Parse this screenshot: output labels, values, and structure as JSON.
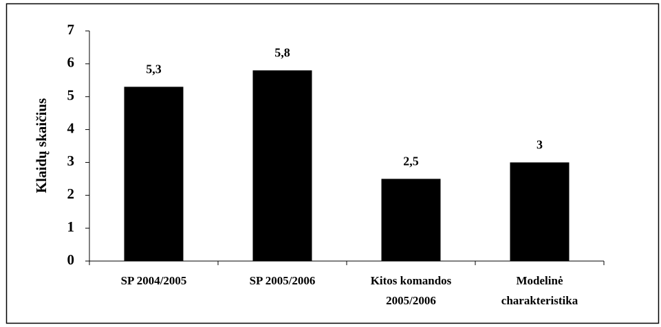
{
  "chart_data": {
    "type": "bar",
    "ylabel": "Klaidų skaičius",
    "categories": [
      "SP 2004/2005",
      "SP 2005/2006",
      "Kitos komandos\n2005/2006",
      "Modelinė\ncharakteristika"
    ],
    "values": [
      5.3,
      5.8,
      2.5,
      3
    ],
    "value_labels": [
      "5,3",
      "5,8",
      "2,5",
      "3"
    ],
    "color": "#000000",
    "ylim": [
      0,
      7
    ],
    "yticks": [
      0,
      1,
      2,
      3,
      4,
      5,
      6,
      7
    ],
    "grid": false
  }
}
